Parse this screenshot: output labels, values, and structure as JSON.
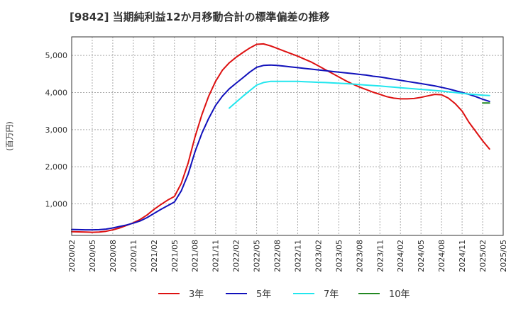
{
  "chart_data": {
    "type": "line",
    "title": "[9842]  当期純利益12か月移動合計の標準偏差の推移",
    "ylabel": "(百万円)",
    "xlabel": "",
    "ylim": [
      150,
      5500
    ],
    "xlim": [
      "2020-02",
      "2025-05"
    ],
    "yticks": [
      1000,
      2000,
      3000,
      4000,
      5000
    ],
    "ytick_labels": [
      "1,000",
      "2,000",
      "3,000",
      "4,000",
      "5,000"
    ],
    "xtick_labels": [
      "2020/02",
      "2020/05",
      "2020/08",
      "2020/11",
      "2021/02",
      "2021/05",
      "2021/08",
      "2021/11",
      "2022/02",
      "2022/05",
      "2022/08",
      "2022/11",
      "2023/02",
      "2023/05",
      "2023/08",
      "2023/11",
      "2024/02",
      "2024/05",
      "2024/08",
      "2024/11",
      "2025/02",
      "2025/05"
    ],
    "grid": true,
    "legend_position": "bottom",
    "series": [
      {
        "name": "3年",
        "color": "#dd1111",
        "points": [
          [
            "2020-02",
            250
          ],
          [
            "2020-03",
            245
          ],
          [
            "2020-04",
            240
          ],
          [
            "2020-05",
            235
          ],
          [
            "2020-06",
            240
          ],
          [
            "2020-07",
            260
          ],
          [
            "2020-08",
            300
          ],
          [
            "2020-09",
            350
          ],
          [
            "2020-10",
            420
          ],
          [
            "2020-11",
            490
          ],
          [
            "2020-12",
            580
          ],
          [
            "2021-01",
            700
          ],
          [
            "2021-02",
            850
          ],
          [
            "2021-03",
            980
          ],
          [
            "2021-04",
            1100
          ],
          [
            "2021-05",
            1200
          ],
          [
            "2021-06",
            1550
          ],
          [
            "2021-07",
            2100
          ],
          [
            "2021-08",
            2800
          ],
          [
            "2021-09",
            3400
          ],
          [
            "2021-10",
            3900
          ],
          [
            "2021-11",
            4300
          ],
          [
            "2021-12",
            4600
          ],
          [
            "2022-01",
            4800
          ],
          [
            "2022-02",
            4950
          ],
          [
            "2022-03",
            5080
          ],
          [
            "2022-04",
            5200
          ],
          [
            "2022-05",
            5300
          ],
          [
            "2022-06",
            5310
          ],
          [
            "2022-07",
            5260
          ],
          [
            "2022-08",
            5190
          ],
          [
            "2022-09",
            5120
          ],
          [
            "2022-10",
            5050
          ],
          [
            "2022-11",
            4980
          ],
          [
            "2022-12",
            4900
          ],
          [
            "2023-01",
            4820
          ],
          [
            "2023-02",
            4720
          ],
          [
            "2023-03",
            4620
          ],
          [
            "2023-04",
            4520
          ],
          [
            "2023-05",
            4420
          ],
          [
            "2023-06",
            4320
          ],
          [
            "2023-07",
            4230
          ],
          [
            "2023-08",
            4150
          ],
          [
            "2023-09",
            4080
          ],
          [
            "2023-10",
            4010
          ],
          [
            "2023-11",
            3950
          ],
          [
            "2023-12",
            3890
          ],
          [
            "2024-01",
            3850
          ],
          [
            "2024-02",
            3830
          ],
          [
            "2024-03",
            3830
          ],
          [
            "2024-04",
            3840
          ],
          [
            "2024-05",
            3870
          ],
          [
            "2024-06",
            3910
          ],
          [
            "2024-07",
            3950
          ],
          [
            "2024-08",
            3940
          ],
          [
            "2024-09",
            3850
          ],
          [
            "2024-10",
            3700
          ],
          [
            "2024-11",
            3500
          ],
          [
            "2024-12",
            3200
          ],
          [
            "2025-01",
            2950
          ],
          [
            "2025-02",
            2700
          ],
          [
            "2025-03",
            2480
          ]
        ]
      },
      {
        "name": "5年",
        "color": "#1111bb",
        "points": [
          [
            "2020-02",
            310
          ],
          [
            "2020-03",
            305
          ],
          [
            "2020-04",
            300
          ],
          [
            "2020-05",
            300
          ],
          [
            "2020-06",
            305
          ],
          [
            "2020-07",
            320
          ],
          [
            "2020-08",
            350
          ],
          [
            "2020-09",
            390
          ],
          [
            "2020-10",
            430
          ],
          [
            "2020-11",
            480
          ],
          [
            "2020-12",
            540
          ],
          [
            "2021-01",
            630
          ],
          [
            "2021-02",
            740
          ],
          [
            "2021-03",
            850
          ],
          [
            "2021-04",
            950
          ],
          [
            "2021-05",
            1050
          ],
          [
            "2021-06",
            1350
          ],
          [
            "2021-07",
            1800
          ],
          [
            "2021-08",
            2400
          ],
          [
            "2021-09",
            2900
          ],
          [
            "2021-10",
            3300
          ],
          [
            "2021-11",
            3650
          ],
          [
            "2021-12",
            3900
          ],
          [
            "2022-01",
            4100
          ],
          [
            "2022-02",
            4250
          ],
          [
            "2022-03",
            4400
          ],
          [
            "2022-04",
            4550
          ],
          [
            "2022-05",
            4680
          ],
          [
            "2022-06",
            4730
          ],
          [
            "2022-07",
            4740
          ],
          [
            "2022-08",
            4730
          ],
          [
            "2022-09",
            4710
          ],
          [
            "2022-10",
            4690
          ],
          [
            "2022-11",
            4670
          ],
          [
            "2022-12",
            4650
          ],
          [
            "2023-01",
            4630
          ],
          [
            "2023-02",
            4610
          ],
          [
            "2023-03",
            4590
          ],
          [
            "2023-04",
            4570
          ],
          [
            "2023-05",
            4550
          ],
          [
            "2023-06",
            4530
          ],
          [
            "2023-07",
            4510
          ],
          [
            "2023-08",
            4490
          ],
          [
            "2023-09",
            4470
          ],
          [
            "2023-10",
            4440
          ],
          [
            "2023-11",
            4420
          ],
          [
            "2023-12",
            4390
          ],
          [
            "2024-01",
            4360
          ],
          [
            "2024-02",
            4330
          ],
          [
            "2024-03",
            4300
          ],
          [
            "2024-04",
            4270
          ],
          [
            "2024-05",
            4240
          ],
          [
            "2024-06",
            4210
          ],
          [
            "2024-07",
            4180
          ],
          [
            "2024-08",
            4140
          ],
          [
            "2024-09",
            4100
          ],
          [
            "2024-10",
            4050
          ],
          [
            "2024-11",
            4000
          ],
          [
            "2024-12",
            3950
          ],
          [
            "2025-01",
            3890
          ],
          [
            "2025-02",
            3820
          ],
          [
            "2025-03",
            3760
          ]
        ]
      },
      {
        "name": "7年",
        "color": "#22e6ee",
        "points": [
          [
            "2022-01",
            3580
          ],
          [
            "2022-02",
            3740
          ],
          [
            "2022-03",
            3900
          ],
          [
            "2022-04",
            4050
          ],
          [
            "2022-05",
            4200
          ],
          [
            "2022-06",
            4270
          ],
          [
            "2022-07",
            4300
          ],
          [
            "2022-08",
            4300
          ],
          [
            "2022-09",
            4300
          ],
          [
            "2022-10",
            4300
          ],
          [
            "2022-11",
            4300
          ],
          [
            "2022-12",
            4290
          ],
          [
            "2023-01",
            4285
          ],
          [
            "2023-02",
            4275
          ],
          [
            "2023-03",
            4270
          ],
          [
            "2023-04",
            4260
          ],
          [
            "2023-05",
            4250
          ],
          [
            "2023-06",
            4240
          ],
          [
            "2023-07",
            4230
          ],
          [
            "2023-08",
            4215
          ],
          [
            "2023-09",
            4200
          ],
          [
            "2023-10",
            4190
          ],
          [
            "2023-11",
            4175
          ],
          [
            "2023-12",
            4160
          ],
          [
            "2024-01",
            4145
          ],
          [
            "2024-02",
            4130
          ],
          [
            "2024-03",
            4115
          ],
          [
            "2024-04",
            4100
          ],
          [
            "2024-05",
            4085
          ],
          [
            "2024-06",
            4070
          ],
          [
            "2024-07",
            4055
          ],
          [
            "2024-08",
            4040
          ],
          [
            "2024-09",
            4020
          ],
          [
            "2024-10",
            4000
          ],
          [
            "2024-11",
            3980
          ],
          [
            "2024-12",
            3960
          ],
          [
            "2025-01",
            3945
          ],
          [
            "2025-02",
            3930
          ],
          [
            "2025-03",
            3920
          ]
        ]
      },
      {
        "name": "10年",
        "color": "#228822",
        "points": [
          [
            "2025-02",
            3720
          ],
          [
            "2025-03",
            3720
          ]
        ]
      }
    ]
  }
}
